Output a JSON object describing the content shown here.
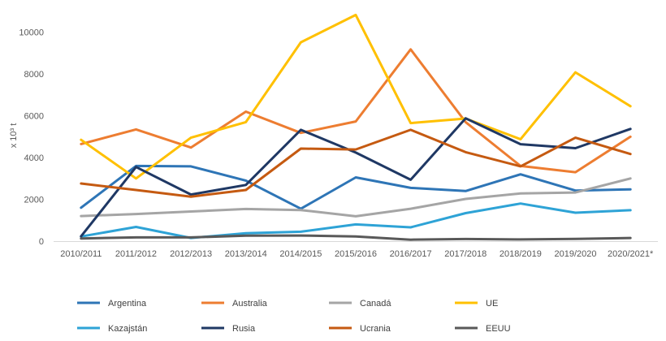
{
  "chart_data": {
    "type": "line",
    "title": "",
    "xlabel": "",
    "ylabel": "x 10³ t",
    "ylim": [
      0,
      11000
    ],
    "yticks": [
      0,
      2000,
      4000,
      6000,
      8000,
      10000
    ],
    "grid": false,
    "legend_position": "bottom",
    "categories": [
      "2010/2011",
      "2011/2012",
      "2012/2013",
      "2013/2014",
      "2014/2015",
      "2015/2016",
      "2016/2017",
      "2017/2018",
      "2018/2019",
      "2019/2020",
      "2020/2021*"
    ],
    "series": [
      {
        "name": "Argentina",
        "color": "#2E75B6",
        "values": [
          1600,
          3600,
          3580,
          2900,
          1550,
          3050,
          2550,
          2400,
          3200,
          2420,
          2480
        ]
      },
      {
        "name": "Australia",
        "color": "#ED7D31",
        "values": [
          4650,
          5350,
          4480,
          6200,
          5180,
          5730,
          9180,
          5700,
          3600,
          3300,
          5000
        ]
      },
      {
        "name": "Canadá",
        "color": "#A5A5A5",
        "values": [
          1200,
          1300,
          1420,
          1540,
          1490,
          1190,
          1550,
          2020,
          2280,
          2330,
          3000
        ]
      },
      {
        "name": "UE",
        "color": "#FFC000",
        "values": [
          4850,
          3000,
          4950,
          5700,
          9520,
          10830,
          5650,
          5870,
          4880,
          8080,
          6460
        ]
      },
      {
        "name": "Kazajstán",
        "color": "#2EA3D6",
        "values": [
          220,
          680,
          150,
          380,
          450,
          800,
          660,
          1340,
          1800,
          1360,
          1480
        ]
      },
      {
        "name": "Rusia",
        "color": "#1F3864",
        "values": [
          230,
          3550,
          2230,
          2690,
          5330,
          4240,
          2940,
          5880,
          4640,
          4450,
          5370
        ]
      },
      {
        "name": "Ucrania",
        "color": "#C55A11",
        "values": [
          2760,
          2450,
          2130,
          2450,
          4430,
          4390,
          5330,
          4260,
          3580,
          4950,
          4170
        ]
      },
      {
        "name": "EEUU",
        "color": "#595959",
        "values": [
          130,
          180,
          180,
          260,
          270,
          220,
          70,
          100,
          80,
          110,
          150
        ]
      }
    ]
  }
}
